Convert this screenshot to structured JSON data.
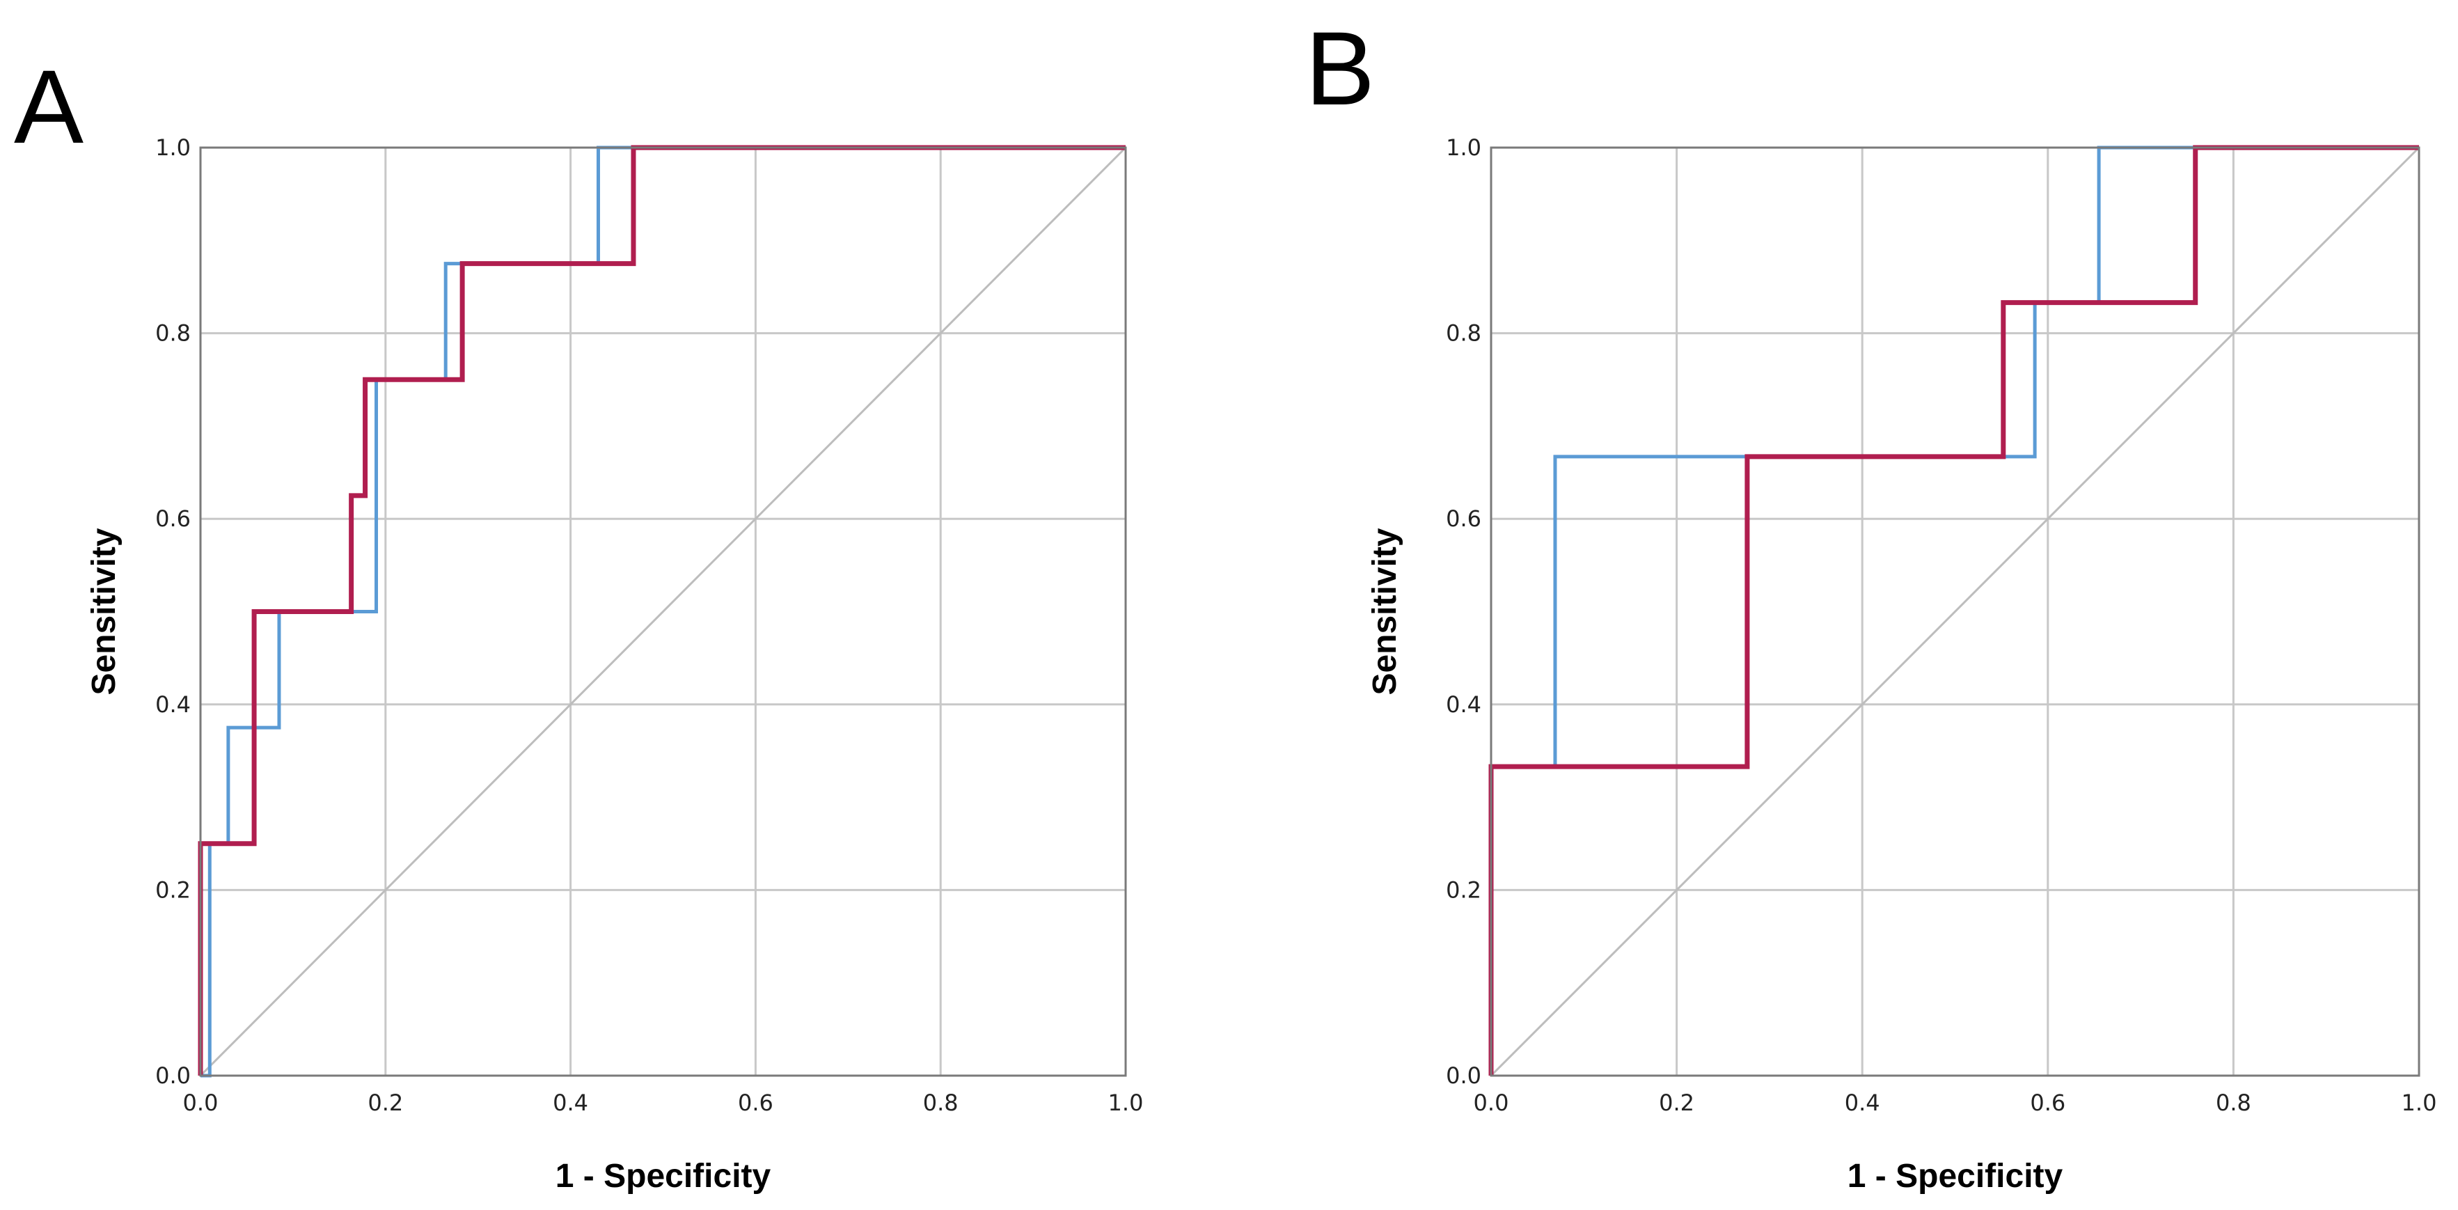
{
  "chart_data": [
    {
      "panel_label": "A",
      "type": "line",
      "subtype": "roc-step",
      "xlabel": "1 - Specificity",
      "ylabel": "Sensitivity",
      "xlim": [
        0,
        1
      ],
      "ylim": [
        0,
        1
      ],
      "x_ticks": [
        "0.0",
        "0.2",
        "0.4",
        "0.6",
        "0.8",
        "1.0"
      ],
      "y_ticks": [
        "0.0",
        "0.2",
        "0.4",
        "0.6",
        "0.8",
        "1.0"
      ],
      "grid": true,
      "reference_line": [
        [
          0,
          0
        ],
        [
          1,
          1
        ]
      ],
      "series": [
        {
          "name": "blue",
          "color": "#5b9bd5",
          "points": [
            [
              0,
              0
            ],
            [
              0.01,
              0
            ],
            [
              0.01,
              0.25
            ],
            [
              0.03,
              0.25
            ],
            [
              0.03,
              0.375
            ],
            [
              0.085,
              0.375
            ],
            [
              0.085,
              0.5
            ],
            [
              0.19,
              0.5
            ],
            [
              0.19,
              0.75
            ],
            [
              0.265,
              0.75
            ],
            [
              0.265,
              0.875
            ],
            [
              0.43,
              0.875
            ],
            [
              0.43,
              1.0
            ],
            [
              1.0,
              1.0
            ]
          ]
        },
        {
          "name": "red",
          "color": "#b01e4f",
          "points": [
            [
              0,
              0
            ],
            [
              0,
              0.25
            ],
            [
              0.058,
              0.25
            ],
            [
              0.058,
              0.5
            ],
            [
              0.163,
              0.5
            ],
            [
              0.163,
              0.625
            ],
            [
              0.178,
              0.625
            ],
            [
              0.178,
              0.75
            ],
            [
              0.283,
              0.75
            ],
            [
              0.283,
              0.875
            ],
            [
              0.468,
              0.875
            ],
            [
              0.468,
              1.0
            ],
            [
              1.0,
              1.0
            ]
          ]
        }
      ]
    },
    {
      "panel_label": "B",
      "type": "line",
      "subtype": "roc-step",
      "xlabel": "1 - Specificity",
      "ylabel": "Sensitivity",
      "xlim": [
        0,
        1
      ],
      "ylim": [
        0,
        1
      ],
      "x_ticks": [
        "0.0",
        "0.2",
        "0.4",
        "0.6",
        "0.8",
        "1.0"
      ],
      "y_ticks": [
        "0.0",
        "0.2",
        "0.4",
        "0.6",
        "0.8",
        "1.0"
      ],
      "grid": true,
      "reference_line": [
        [
          0,
          0
        ],
        [
          1,
          1
        ]
      ],
      "series": [
        {
          "name": "blue",
          "color": "#5b9bd5",
          "points": [
            [
              0,
              0
            ],
            [
              0,
              0.333
            ],
            [
              0.069,
              0.333
            ],
            [
              0.069,
              0.667
            ],
            [
              0.586,
              0.667
            ],
            [
              0.586,
              0.833
            ],
            [
              0.655,
              0.833
            ],
            [
              0.655,
              1.0
            ],
            [
              1.0,
              1.0
            ]
          ]
        },
        {
          "name": "red",
          "color": "#b01e4f",
          "points": [
            [
              0,
              0
            ],
            [
              0,
              0.333
            ],
            [
              0.276,
              0.333
            ],
            [
              0.276,
              0.667
            ],
            [
              0.552,
              0.667
            ],
            [
              0.552,
              0.833
            ],
            [
              0.759,
              0.833
            ],
            [
              0.759,
              1.0
            ],
            [
              1.0,
              1.0
            ]
          ]
        }
      ]
    }
  ]
}
